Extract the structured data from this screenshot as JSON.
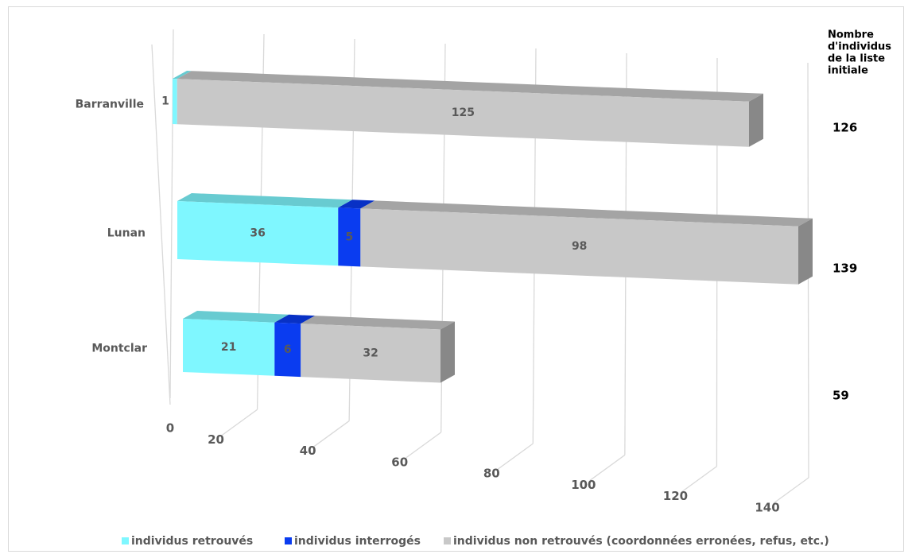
{
  "chart_data": {
    "type": "bar",
    "orientation": "horizontal",
    "stacked": true,
    "style": "3d",
    "categories": [
      "Barranville",
      "Lunan",
      "Montclar"
    ],
    "series": [
      {
        "name": "individus retrouvés",
        "values": [
          1,
          36,
          21
        ],
        "color": "#7ff7ff"
      },
      {
        "name": "individus interrogés",
        "values": [
          0,
          5,
          6
        ],
        "color": "#0a3cf0"
      },
      {
        "name": "individus non retrouvés (coordonnées erronées, refus, etc.)",
        "values": [
          125,
          98,
          32
        ],
        "color": "#c8c8c8"
      }
    ],
    "xticks": [
      "0",
      "20",
      "40",
      "60",
      "80",
      "100",
      "120",
      "140"
    ],
    "xlim": [
      0,
      140
    ],
    "totals_title": [
      "Nombre",
      "d'individus",
      "de la liste",
      "initiale"
    ],
    "totals": [
      "126",
      "139",
      "59"
    ],
    "legend_position": "bottom",
    "grid": true
  }
}
